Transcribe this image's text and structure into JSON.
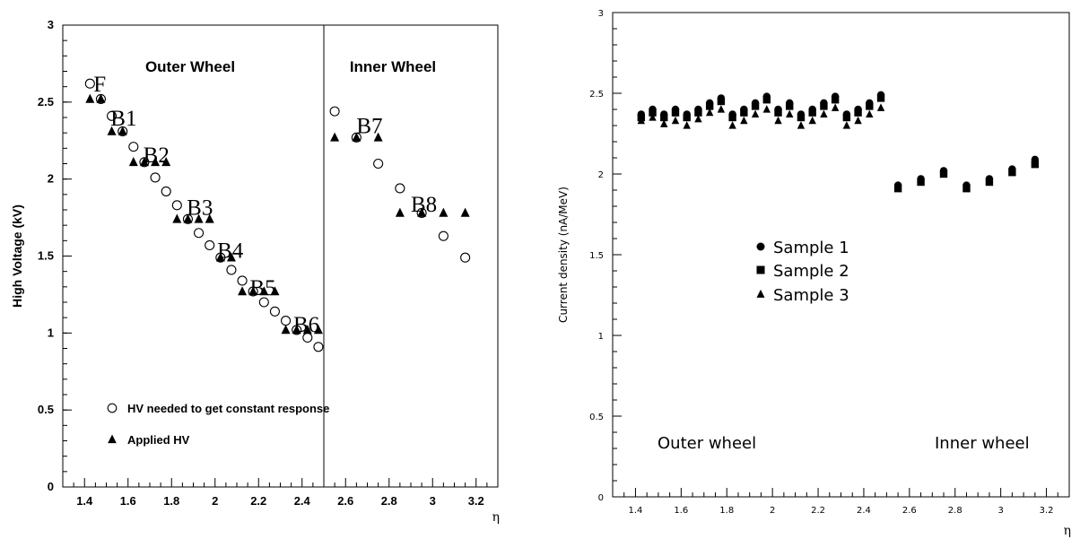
{
  "chart_data": [
    {
      "type": "scatter",
      "title": "",
      "xlabel": "η",
      "ylabel": "High Voltage (kV)",
      "xlim": [
        1.3,
        3.3
      ],
      "ylim": [
        0,
        3
      ],
      "xticks": [
        "1.4",
        "1.6",
        "1.8",
        "2",
        "2.2",
        "2.4",
        "2.6",
        "2.8",
        "3",
        "3.2"
      ],
      "yticks": [
        "0",
        "0.5",
        "1",
        "1.5",
        "2",
        "2.5",
        "3"
      ],
      "region_labels": [
        "Outer Wheel",
        "Inner Wheel"
      ],
      "divider_x": 2.5,
      "segment_labels": [
        {
          "text": "F",
          "x": 1.47,
          "y": 2.62
        },
        {
          "text": "B1",
          "x": 1.58,
          "y": 2.4
        },
        {
          "text": "B2",
          "x": 1.73,
          "y": 2.16
        },
        {
          "text": "B3",
          "x": 1.93,
          "y": 1.82
        },
        {
          "text": "B4",
          "x": 2.07,
          "y": 1.54
        },
        {
          "text": "B5",
          "x": 2.22,
          "y": 1.3
        },
        {
          "text": "B6",
          "x": 2.42,
          "y": 1.06
        },
        {
          "text": "B7",
          "x": 2.71,
          "y": 2.35
        },
        {
          "text": "B8",
          "x": 2.96,
          "y": 1.84
        }
      ],
      "series": [
        {
          "name": "HV needed to get constant response",
          "marker": "open-circle",
          "x": [
            1.425,
            1.475,
            1.525,
            1.575,
            1.625,
            1.675,
            1.725,
            1.775,
            1.825,
            1.875,
            1.925,
            1.975,
            2.025,
            2.075,
            2.125,
            2.175,
            2.225,
            2.275,
            2.325,
            2.375,
            2.425,
            2.475,
            2.55,
            2.65,
            2.75,
            2.85,
            2.95,
            3.05,
            3.15
          ],
          "y": [
            2.62,
            2.52,
            2.41,
            2.31,
            2.21,
            2.11,
            2.01,
            1.92,
            1.83,
            1.74,
            1.65,
            1.57,
            1.49,
            1.41,
            1.34,
            1.27,
            1.2,
            1.14,
            1.08,
            1.02,
            0.97,
            0.91,
            2.44,
            2.27,
            2.1,
            1.94,
            1.78,
            1.63,
            1.49
          ]
        },
        {
          "name": "Applied HV",
          "marker": "filled-triangle",
          "x": [
            1.425,
            1.475,
            1.525,
            1.575,
            1.625,
            1.675,
            1.725,
            1.775,
            1.825,
            1.875,
            1.925,
            1.975,
            2.025,
            2.075,
            2.125,
            2.175,
            2.225,
            2.275,
            2.325,
            2.375,
            2.425,
            2.475,
            2.55,
            2.65,
            2.75,
            2.85,
            2.95,
            3.05,
            3.15
          ],
          "y": [
            2.52,
            2.52,
            2.31,
            2.31,
            2.11,
            2.11,
            2.11,
            2.11,
            1.74,
            1.74,
            1.74,
            1.74,
            1.49,
            1.49,
            1.27,
            1.27,
            1.27,
            1.27,
            1.02,
            1.02,
            1.02,
            1.02,
            2.27,
            2.27,
            2.27,
            1.78,
            1.78,
            1.78,
            1.78
          ]
        }
      ],
      "legend": {
        "placement": "bottom-left"
      }
    },
    {
      "type": "scatter",
      "title": "",
      "xlabel": "η",
      "ylabel": "Current density (nA/MeV)",
      "xlim": [
        1.3,
        3.3
      ],
      "ylim": [
        0,
        3
      ],
      "xticks": [
        "1.4",
        "1.6",
        "1.8",
        "2",
        "2.2",
        "2.4",
        "2.6",
        "2.8",
        "3",
        "3.2"
      ],
      "yticks": [
        "0",
        "0.5",
        "1",
        "1.5",
        "2",
        "2.5",
        "3"
      ],
      "region_labels": [
        "Outer wheel",
        "Inner wheel"
      ],
      "series": [
        {
          "name": "Sample 1",
          "marker": "filled-circle",
          "x": [
            1.425,
            1.475,
            1.525,
            1.575,
            1.625,
            1.675,
            1.725,
            1.775,
            1.825,
            1.875,
            1.925,
            1.975,
            2.025,
            2.075,
            2.125,
            2.175,
            2.225,
            2.275,
            2.325,
            2.375,
            2.425,
            2.475,
            2.55,
            2.65,
            2.75,
            2.85,
            2.95,
            3.05,
            3.15
          ],
          "y": [
            2.37,
            2.4,
            2.37,
            2.4,
            2.37,
            2.4,
            2.44,
            2.47,
            2.37,
            2.4,
            2.44,
            2.48,
            2.4,
            2.44,
            2.37,
            2.4,
            2.44,
            2.48,
            2.37,
            2.4,
            2.44,
            2.49,
            1.93,
            1.97,
            2.02,
            1.93,
            1.97,
            2.03,
            2.09
          ]
        },
        {
          "name": "Sample 2",
          "marker": "filled-square",
          "x": [
            1.425,
            1.475,
            1.525,
            1.575,
            1.625,
            1.675,
            1.725,
            1.775,
            1.825,
            1.875,
            1.925,
            1.975,
            2.025,
            2.075,
            2.125,
            2.175,
            2.225,
            2.275,
            2.325,
            2.375,
            2.425,
            2.475,
            2.55,
            2.65,
            2.75,
            2.85,
            2.95,
            3.05,
            3.15
          ],
          "y": [
            2.35,
            2.38,
            2.35,
            2.38,
            2.35,
            2.38,
            2.42,
            2.45,
            2.35,
            2.38,
            2.42,
            2.46,
            2.38,
            2.42,
            2.35,
            2.38,
            2.42,
            2.46,
            2.35,
            2.38,
            2.42,
            2.47,
            1.91,
            1.95,
            2.0,
            1.91,
            1.95,
            2.01,
            2.06
          ]
        },
        {
          "name": "Sample 3",
          "marker": "filled-triangle",
          "x": [
            1.425,
            1.475,
            1.525,
            1.575,
            1.625,
            1.675,
            1.725,
            1.775,
            1.825,
            1.875,
            1.925,
            1.975,
            2.025,
            2.075,
            2.125,
            2.175,
            2.225,
            2.275,
            2.325,
            2.375,
            2.425,
            2.475
          ],
          "y": [
            2.33,
            2.35,
            2.31,
            2.33,
            2.3,
            2.34,
            2.38,
            2.4,
            2.3,
            2.33,
            2.37,
            2.4,
            2.33,
            2.37,
            2.3,
            2.33,
            2.37,
            2.41,
            2.3,
            2.33,
            2.37,
            2.41
          ]
        }
      ],
      "legend": {
        "placement": "center-left"
      }
    }
  ]
}
